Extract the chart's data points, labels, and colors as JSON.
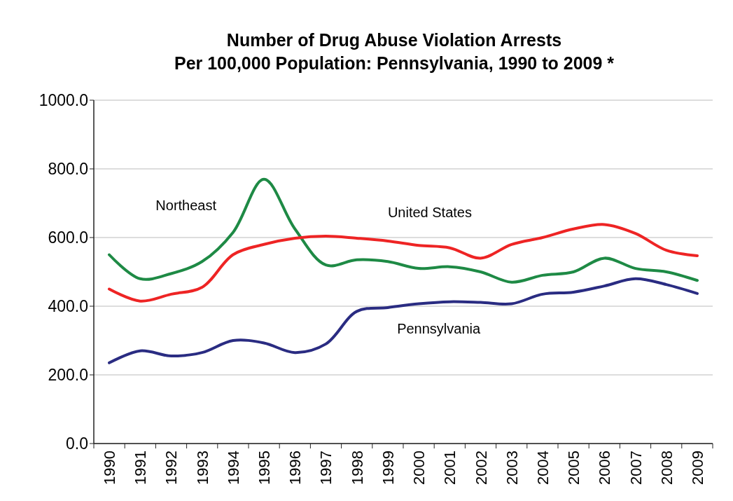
{
  "chart_data": {
    "type": "line",
    "title": "Number of Drug Abuse Violation Arrests\nPer 100,000 Population: Pennsylvania, 1990 to 2009 *",
    "categories": [
      "1990",
      "1991",
      "1992",
      "1993",
      "1994",
      "1995",
      "1996",
      "1997",
      "1998",
      "1999",
      "2000",
      "2001",
      "2002",
      "2003",
      "2004",
      "2005",
      "2006",
      "2007",
      "2008",
      "2009"
    ],
    "series": [
      {
        "name": "Northeast",
        "color": "#1e8a45",
        "values": [
          550,
          480,
          495,
          530,
          615,
          770,
          625,
          520,
          535,
          530,
          510,
          515,
          500,
          470,
          490,
          500,
          540,
          510,
          500,
          475
        ]
      },
      {
        "name": "United States",
        "color": "#ee2424",
        "values": [
          450,
          415,
          435,
          455,
          550,
          580,
          598,
          604,
          598,
          590,
          577,
          570,
          540,
          580,
          600,
          625,
          638,
          612,
          563,
          547
        ]
      },
      {
        "name": "Pennsylvania",
        "color": "#2a2c82",
        "values": [
          235,
          270,
          255,
          265,
          300,
          293,
          265,
          290,
          385,
          396,
          407,
          413,
          411,
          407,
          435,
          441,
          459,
          480,
          463,
          437
        ]
      }
    ],
    "ylim": [
      0,
      1000
    ],
    "yticks": [
      {
        "value": 0,
        "label": "0.0"
      },
      {
        "value": 200,
        "label": "200.0"
      },
      {
        "value": 400,
        "label": "400.0"
      },
      {
        "value": 600,
        "label": "600.0"
      },
      {
        "value": 800,
        "label": "800.0"
      },
      {
        "value": 1000,
        "label": "1000.0"
      }
    ],
    "grid": "y",
    "legend": false,
    "marker": "none",
    "line_style": "solid"
  }
}
